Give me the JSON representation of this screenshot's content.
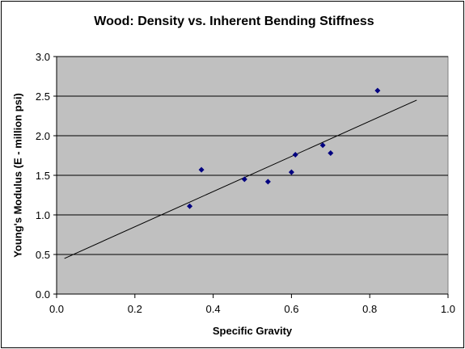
{
  "chart_data": {
    "type": "scatter",
    "title": "Wood:  Density vs. Inherent Bending Stiffness",
    "xlabel": "Specific Gravity",
    "ylabel": "Young's Modulus (E - million psi)",
    "xlim": [
      0.0,
      1.0
    ],
    "ylim": [
      0.0,
      3.0
    ],
    "xticks": [
      "0.0",
      "0.2",
      "0.4",
      "0.6",
      "0.8",
      "1.0"
    ],
    "yticks": [
      "0.0",
      "0.5",
      "1.0",
      "1.5",
      "2.0",
      "2.5",
      "3.0"
    ],
    "grid": "horizontal major gridlines",
    "background_color": "#c0c0c0",
    "marker_color": "#000080",
    "series": [
      {
        "points": [
          {
            "x": 0.34,
            "y": 1.11
          },
          {
            "x": 0.37,
            "y": 1.57
          },
          {
            "x": 0.48,
            "y": 1.45
          },
          {
            "x": 0.54,
            "y": 1.42
          },
          {
            "x": 0.6,
            "y": 1.54
          },
          {
            "x": 0.61,
            "y": 1.76
          },
          {
            "x": 0.68,
            "y": 1.88
          },
          {
            "x": 0.7,
            "y": 1.78
          },
          {
            "x": 0.82,
            "y": 2.57
          }
        ]
      }
    ],
    "trendline": {
      "type": "linear",
      "x": [
        0.02,
        0.92
      ],
      "y": [
        0.45,
        2.45
      ]
    }
  }
}
